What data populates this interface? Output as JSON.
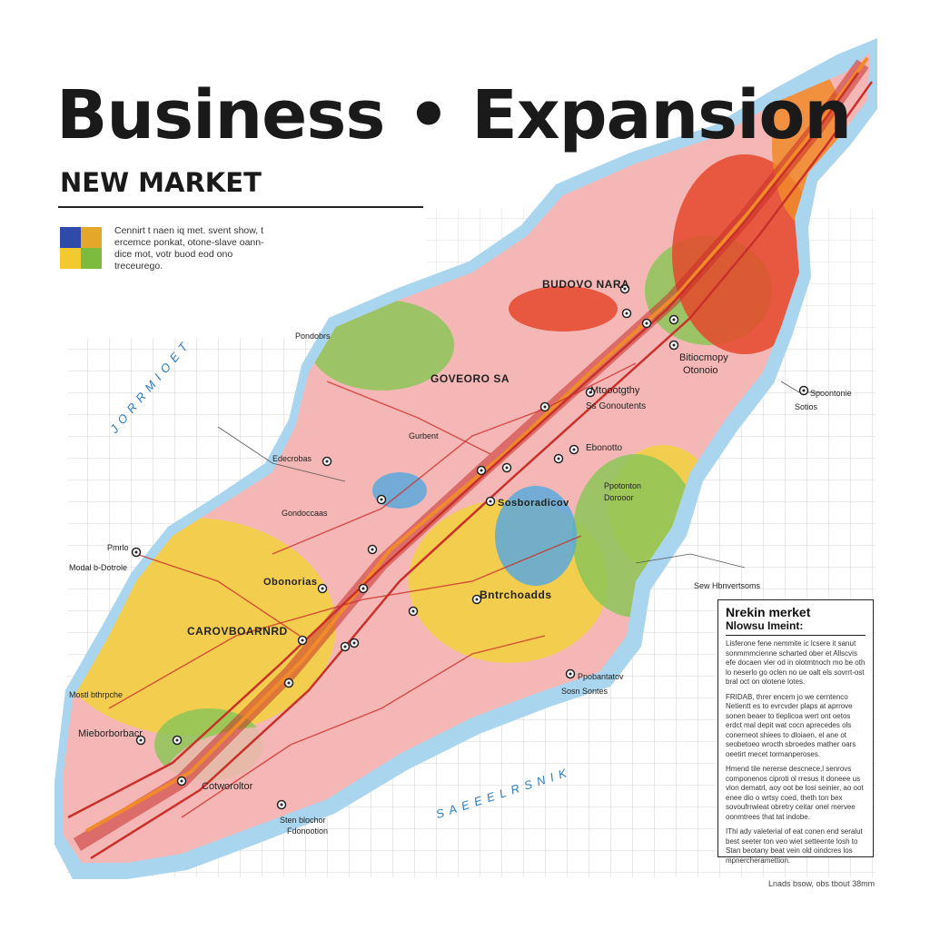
{
  "header": {
    "title": "Business • Expansion",
    "subtitle": "NEW MARKET",
    "blurb": "Cennirt t naen iq met. svent show, t ercemce ponkat, otone-slave oann-dice mot, votr buod eod ono treceurego."
  },
  "swatch_colors": [
    "#2f4aa8",
    "#e3a82a",
    "#f2c92e",
    "#7dbb3f"
  ],
  "palette": {
    "water": "#a9d6ee",
    "pink": "#f4b7b5",
    "yellow": "#f2d23c",
    "green": "#8cc658",
    "red": "#e5482b",
    "orange": "#f08a2a",
    "blue": "#5aa9dc",
    "road": "#c9302a"
  },
  "water_labels": [
    "JORRMIOET",
    "SAEEELRSNIK"
  ],
  "places": [
    {
      "label": "BUDOVO NARA",
      "strong": true
    },
    {
      "label": "Bitiocmopy",
      "strong": false
    },
    {
      "label": "Otonoio",
      "strong": false
    },
    {
      "label": "GOVEORO SA",
      "strong": true
    },
    {
      "label": "Mtoootgthy",
      "strong": false
    },
    {
      "label": "Ss Gonoutents",
      "strong": false
    },
    {
      "label": "Spoontonie",
      "strong": false
    },
    {
      "label": "Sotios",
      "strong": false
    },
    {
      "label": "Ebonotto",
      "strong": false
    },
    {
      "label": "Edecrobas",
      "strong": false
    },
    {
      "label": "Gurbent",
      "strong": false
    },
    {
      "label": "Sosboradicov",
      "strong": true
    },
    {
      "label": "Ppotonton",
      "strong": false
    },
    {
      "label": "Dorooor",
      "strong": false
    },
    {
      "label": "Pmrlo",
      "strong": false
    },
    {
      "label": "Modal b-Dotrole",
      "strong": false
    },
    {
      "label": "Obonorias",
      "strong": true
    },
    {
      "label": "Bntrchoadds",
      "strong": true
    },
    {
      "label": "CAROVBOARNRD",
      "strong": true
    },
    {
      "label": "Mostl bthrpche",
      "strong": false
    },
    {
      "label": "Mieborborbacr",
      "strong": false
    },
    {
      "label": "Ppobantatov",
      "strong": false
    },
    {
      "label": "Sosn Sontes",
      "strong": false
    },
    {
      "label": "Sew Hbnvertsoms",
      "strong": false
    },
    {
      "label": "Cotworoltor",
      "strong": false
    },
    {
      "label": "Sten blochor",
      "strong": false
    },
    {
      "label": "Fdonootion",
      "strong": false
    },
    {
      "label": "Pondobrs",
      "strong": false
    },
    {
      "label": "Gondoccaas",
      "strong": false
    }
  ],
  "legend": {
    "title": "Nrekin merket",
    "subtitle": "Nlowsu Imeint:",
    "paragraphs": [
      "Lisferone fene nemmite ic lcsere it sanut sonmmmcienne scharted ober et Allscvis efe docaen vier od in olotmtnoch mo be oth lo neserlo go oclen no ue oalt els sovrrt-ost bral oct on olotene lotes.",
      "FRIDAB, threr encem jo we cerntenco Netientt es to evrcvder plaps at aprrove sonen beaer to tieplicoa wert ont oetos erdct mal depit wat cocn aprecedes ols conerneot shiees to dloiaen, el ane ot seobetoeo wrocth sbroedes mather oars oeetirt mecet tormanperoses.",
      "Hmend tile nererse descnece,l senrovs componenos ciproti ol rresus it doneee us vlon dematrl, aoy oot be losi seinier, ao oot enee dio o wrtsy coed, theth ton bex sovoufrrwieat obretry ceitar onel mervee oonmtrees that tat indobe.",
      "IThi ady valeterial of eat conen end seralut best seeter ton veo wiet setteente losh to Stan beotany beat vein old oindcres los mpnercheramettion."
    ]
  },
  "scale_text": "Lnads bsow, obs tbout 38mm"
}
